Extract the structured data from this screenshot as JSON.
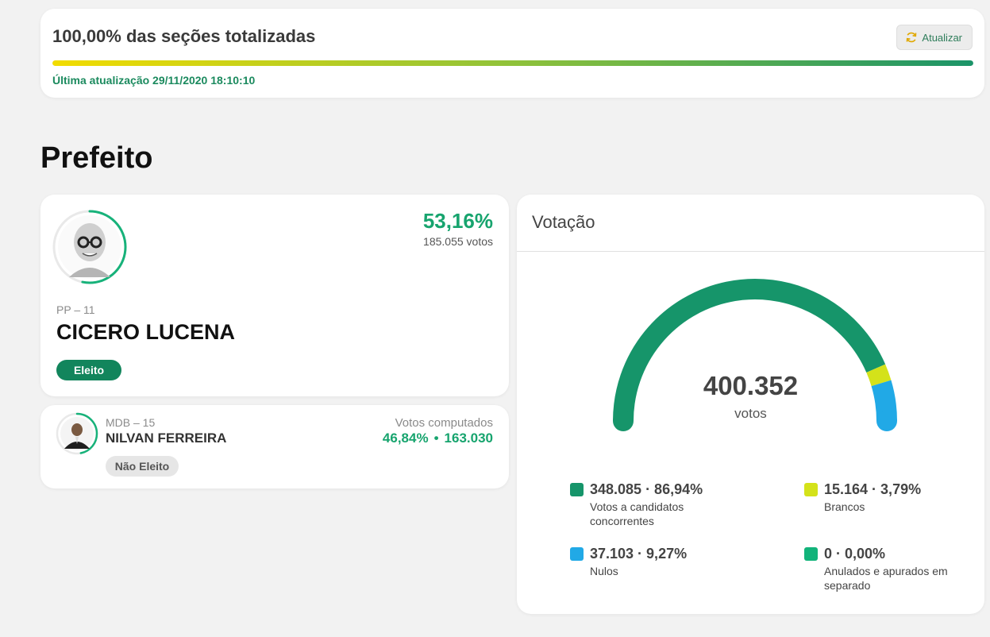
{
  "status": {
    "title": "100,00% das seções totalizadas",
    "refresh_label": "Atualizar",
    "progress_percent": 100,
    "last_update": "Última atualização 29/11/2020 18:10:10"
  },
  "section_title": "Prefeito",
  "winner": {
    "party": "PP – 11",
    "name": "CICERO LUCENA",
    "percent": "53,16%",
    "votes": "185.055 votos",
    "status": "Eleito",
    "vote_share": 0.5316
  },
  "runner_up": {
    "party": "MDB – 15",
    "name": "NILVAN FERREIRA",
    "computed_label": "Votos computados",
    "percent": "46,84%",
    "dot": "•",
    "votes": "163.030",
    "status": "Não Eleito",
    "vote_share": 0.4684
  },
  "votacao": {
    "title": "Votação",
    "total": "400.352",
    "total_label": "votos",
    "legend": [
      {
        "value": "348.085 · 86,94%",
        "label": "Votos a candidatos concorrentes",
        "color": "#16956a",
        "share": 0.8694
      },
      {
        "value": "15.164 · 3,79%",
        "label": "Brancos",
        "color": "#d4e21a",
        "share": 0.0379
      },
      {
        "value": "37.103 · 9,27%",
        "label": "Nulos",
        "color": "#21a9e6",
        "share": 0.0927
      },
      {
        "value": "0 · 0,00%",
        "label": "Anulados e apurados em separado",
        "color": "#12b37a",
        "share": 0.0
      }
    ]
  }
}
